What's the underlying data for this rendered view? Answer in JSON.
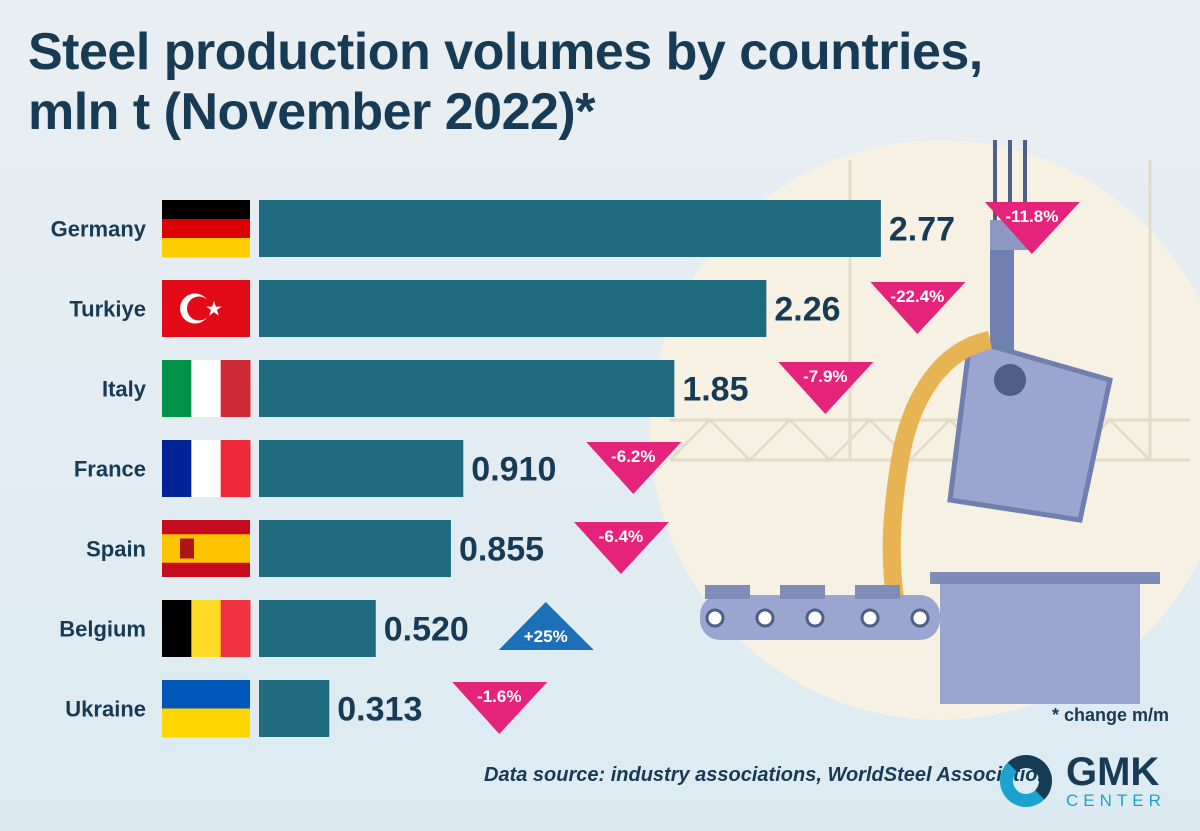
{
  "title": "Steel production volumes by countries, mln t (November 2022)*",
  "title_line1": "Steel production volumes by countries,",
  "title_line2": "mln t (November 2022)*",
  "note": "* change m/m",
  "source": "Data source: industry associations, WorldSteel Association",
  "logo": {
    "main": "GMK",
    "sub": "CENTER"
  },
  "colors": {
    "bar": "#1f6b80",
    "decrease": "#e6237a",
    "increase": "#1d70b8",
    "title": "#173a55"
  },
  "chart_data": {
    "type": "bar",
    "orientation": "horizontal",
    "title": "Steel production volumes by countries, mln t (November 2022)*",
    "categories": [
      "Germany",
      "Turkiye",
      "Italy",
      "France",
      "Spain",
      "Belgium",
      "Ukraine"
    ],
    "values": [
      2.77,
      2.26,
      1.85,
      0.91,
      0.855,
      0.52,
      0.313
    ],
    "value_labels": [
      "2.77",
      "2.26",
      "1.85",
      "0.910",
      "0.855",
      "0.520",
      "0.313"
    ],
    "change_labels": [
      "-11.8%",
      "-22.4%",
      "-7.9%",
      "-6.2%",
      "-6.4%",
      "+25%",
      "-1.6%"
    ],
    "change": [
      -11.8,
      -22.4,
      -7.9,
      -6.2,
      -6.4,
      25,
      -1.6
    ],
    "flags": [
      "germany-flag",
      "turkey-flag",
      "italy-flag",
      "france-flag",
      "spain-flag",
      "belgium-flag",
      "ukraine-flag"
    ],
    "grid": false
  }
}
